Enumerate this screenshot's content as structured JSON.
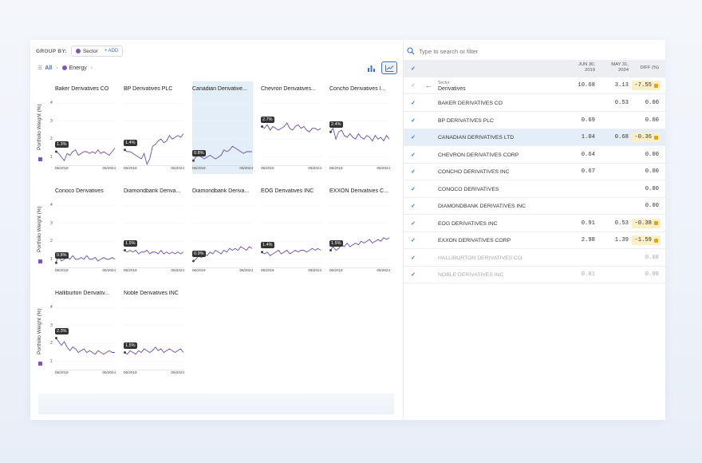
{
  "groupby": {
    "label": "GROUP BY:",
    "chip": "Sector",
    "add": "+ ADD"
  },
  "breadcrumb": {
    "all": "All",
    "current": "Energy"
  },
  "yaxis_title": "Portfolio Weight (%)",
  "yticks": [
    "4",
    "3",
    "2",
    "1"
  ],
  "search": {
    "placeholder": "Type to search or filter"
  },
  "table": {
    "col1": [
      "JUN 30,",
      "2019"
    ],
    "col2": [
      "MAY 31,",
      "2024"
    ],
    "col3": "DIFF (%)",
    "group": {
      "sub": "Sector",
      "name": "Derivatives",
      "v1": "10.68",
      "v2": "3.13",
      "diff": "-7.55"
    },
    "rows": [
      {
        "name": "BAKER DERIVATIVES CO",
        "v1": "",
        "v2": "0.53",
        "diff": "0.00",
        "badge": false,
        "hl": false,
        "dim": false
      },
      {
        "name": "BP DERIVATIVES PLC",
        "v1": "0.69",
        "v2": "",
        "diff": "0.00",
        "badge": false,
        "hl": false,
        "dim": false
      },
      {
        "name": "CANADIAN DERIVATIVES LTD",
        "v1": "1.04",
        "v2": "0.68",
        "diff": "-0.36",
        "badge": true,
        "hl": true,
        "dim": false
      },
      {
        "name": "CHEVRON DERIVATIVES CORP",
        "v1": "0.64",
        "v2": "",
        "diff": "0.00",
        "badge": false,
        "hl": false,
        "dim": false
      },
      {
        "name": "CONCHO DERIVATIVES INC",
        "v1": "0.67",
        "v2": "",
        "diff": "0.00",
        "badge": false,
        "hl": false,
        "dim": false
      },
      {
        "name": "CONOCO DERIVATIVES",
        "v1": "",
        "v2": "",
        "diff": "0.00",
        "badge": false,
        "hl": false,
        "dim": false
      },
      {
        "name": "DIAMONDBANK DERIVATIVES INC",
        "v1": "",
        "v2": "",
        "diff": "0.00",
        "badge": false,
        "hl": false,
        "dim": false
      },
      {
        "name": "EOG DERIVATIVES INC",
        "v1": "0.91",
        "v2": "0.53",
        "diff": "-0.38",
        "badge": true,
        "hl": false,
        "dim": false
      },
      {
        "name": "EXXON DERIVATIVES CORP",
        "v1": "2.98",
        "v2": "1.39",
        "diff": "-1.59",
        "badge": true,
        "hl": false,
        "dim": false
      },
      {
        "name": "HALLIBURTON DERIVATIVES CO",
        "v1": "",
        "v2": "",
        "diff": "0.00",
        "badge": false,
        "hl": false,
        "dim": true
      },
      {
        "name": "NOBLE DERIVATIVES INC",
        "v1": "0.61",
        "v2": "",
        "diff": "0.00",
        "badge": false,
        "hl": false,
        "dim": true
      }
    ]
  },
  "chart_data": {
    "type": "line",
    "ylabel": "Portfolio Weight (%)",
    "ylim": [
      0.5,
      4.5
    ],
    "x_tick_labels": [
      "06/2019",
      "06/2024"
    ],
    "series_color": "#6a4fb0",
    "series": [
      {
        "name": "Baker Derivatives CO",
        "callout": "1.3%",
        "values": [
          1.3,
          1.2,
          1.0,
          0.8,
          1.2,
          1.1,
          1.3,
          1.4,
          1.1,
          1.2,
          1.3,
          1.3,
          1.2,
          1.3,
          1.2,
          1.4,
          1.2,
          1.3,
          1.2,
          1.1,
          1.3,
          1.5
        ]
      },
      {
        "name": "BP Derivatives PLC",
        "callout": "1.4%",
        "values": [
          1.4,
          1.3,
          1.3,
          1.2,
          1.1,
          1.0,
          0.9,
          1.2,
          0.6,
          0.9,
          1.6,
          1.7,
          1.9,
          2.0,
          1.8,
          1.9,
          2.2,
          2.0,
          2.1,
          2.2,
          2.1,
          2.3
        ]
      },
      {
        "name": "Canadian Derivative...",
        "callout": "0.8%",
        "values": [
          0.8,
          1.0,
          1.1,
          1.0,
          0.9,
          1.0,
          1.1,
          1.0,
          0.9,
          1.0,
          1.1,
          1.4,
          1.3,
          1.4,
          1.6,
          1.5,
          1.4,
          1.3,
          1.2,
          1.3,
          1.3,
          1.3
        ]
      },
      {
        "name": "Chevron Derivatives...",
        "callout": "2.7%",
        "values": [
          2.7,
          2.6,
          2.8,
          2.5,
          2.7,
          2.6,
          2.5,
          2.6,
          2.7,
          2.9,
          2.6,
          2.5,
          2.7,
          2.8,
          2.6,
          2.7,
          2.5,
          2.4,
          2.6,
          2.6,
          2.5,
          2.6
        ]
      },
      {
        "name": "Concho Derivatives I...",
        "callout": "2.4%",
        "values": [
          2.4,
          2.6,
          2.0,
          2.4,
          2.5,
          2.2,
          2.1,
          2.3,
          2.1,
          2.0,
          2.3,
          2.1,
          2.0,
          2.2,
          2.1,
          1.9,
          2.2,
          2.0,
          2.1,
          1.9,
          2.2,
          2.0
        ]
      },
      {
        "name": "Conoco Derivatives",
        "callout": "0.8%",
        "values": [
          0.8,
          1.2,
          0.9,
          1.0,
          1.1,
          1.0,
          1.2,
          1.0,
          1.0,
          1.1,
          1.0,
          1.2,
          1.0,
          1.0,
          1.1,
          0.9,
          1.0,
          1.1,
          1.0,
          1.0,
          1.1,
          1.0
        ]
      },
      {
        "name": "Diamondbank Deriva...",
        "callout": "1.5%",
        "values": [
          1.5,
          1.4,
          1.5,
          1.4,
          1.5,
          1.3,
          1.4,
          1.4,
          1.5,
          1.3,
          1.4,
          1.4,
          1.3,
          1.5,
          1.3,
          1.4,
          1.3,
          1.4,
          1.3,
          1.4,
          1.3,
          1.4
        ]
      },
      {
        "name": "Diamondbank Deriva...",
        "callout": "0.9%",
        "values": [
          0.9,
          1.0,
          1.2,
          1.1,
          1.3,
          1.2,
          1.4,
          1.3,
          1.5,
          1.4,
          1.3,
          1.5,
          1.4,
          1.6,
          1.5,
          1.6,
          1.5,
          1.7,
          1.6,
          1.5,
          1.7,
          1.6
        ]
      },
      {
        "name": "EOG Derivatives INC",
        "callout": "1.4%",
        "values": [
          1.4,
          1.3,
          1.4,
          1.2,
          1.3,
          1.4,
          1.5,
          1.3,
          1.4,
          1.5,
          1.3,
          1.4,
          1.5,
          1.4,
          1.5,
          1.5,
          1.4,
          1.5,
          1.6,
          1.5,
          1.6,
          1.5
        ]
      },
      {
        "name": "EXXON Derivatives C...",
        "callout": "1.5%",
        "values": [
          1.5,
          1.7,
          1.5,
          1.6,
          1.8,
          1.7,
          1.9,
          1.7,
          1.8,
          1.9,
          1.8,
          2.0,
          1.9,
          2.0,
          2.1,
          1.9,
          2.0,
          2.1,
          2.0,
          2.2,
          2.1,
          2.2
        ]
      },
      {
        "name": "Halliburton Derivativ...",
        "callout": "2.3%",
        "values": [
          2.3,
          2.1,
          1.9,
          2.1,
          1.8,
          1.6,
          1.8,
          1.7,
          1.5,
          1.6,
          1.7,
          1.5,
          1.6,
          1.5,
          1.4,
          1.6,
          1.5,
          1.4,
          1.5,
          1.6,
          1.5,
          1.5
        ]
      },
      {
        "name": "Noble Derivatives INC",
        "callout": "1.5%",
        "values": [
          1.5,
          1.4,
          1.6,
          1.5,
          1.4,
          1.6,
          1.5,
          1.7,
          1.6,
          1.5,
          1.6,
          1.8,
          1.6,
          1.7,
          1.5,
          1.6,
          1.7,
          1.6,
          1.5,
          1.6,
          1.7,
          1.5
        ]
      }
    ],
    "highlighted_series": 2
  }
}
